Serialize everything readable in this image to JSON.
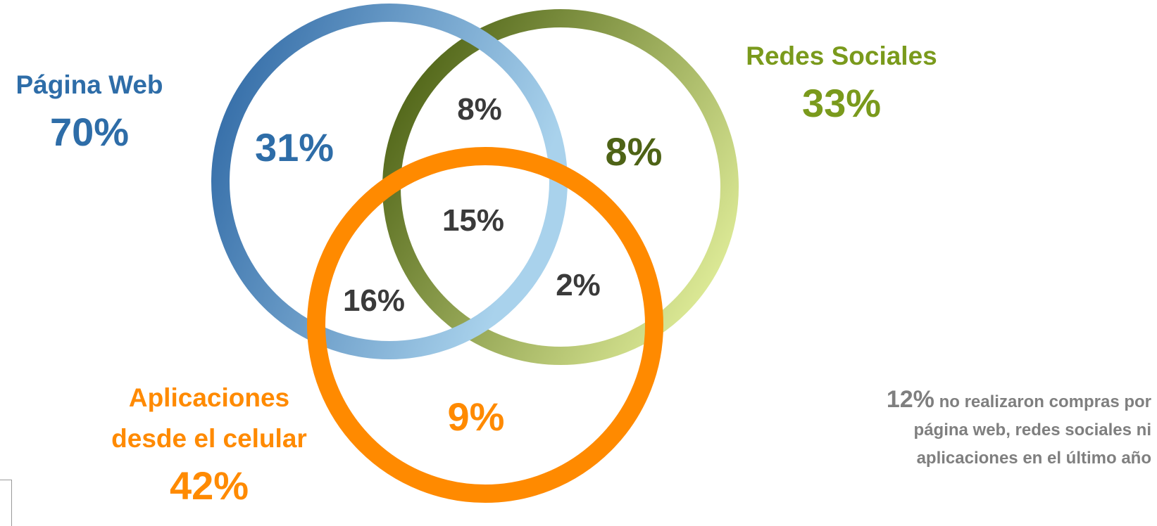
{
  "sets": [
    {
      "id": "web",
      "label_lines": [
        "Página Web"
      ],
      "total": "70%",
      "color": "#2E6DA8",
      "gradient": [
        "#2C66A3",
        "#A9D2EC"
      ]
    },
    {
      "id": "social",
      "label_lines": [
        "Redes Sociales"
      ],
      "total": "33%",
      "color": "#7A9A1C",
      "gradient": [
        "#4E6316",
        "#E2EF9B"
      ]
    },
    {
      "id": "apps",
      "label_lines": [
        "Aplicaciones",
        "desde el celular"
      ],
      "total": "42%",
      "color": "#FF8A00",
      "gradient": [
        "#FF8A00",
        "#FF8A00"
      ]
    }
  ],
  "regions": [
    {
      "id": "web-only",
      "value": "31%",
      "color": "#2E6DA8"
    },
    {
      "id": "social-only",
      "value": "8%",
      "color": "#4E6316"
    },
    {
      "id": "apps-only",
      "value": "9%",
      "color": "#FF8A00"
    },
    {
      "id": "web-social",
      "value": "8%",
      "color": "#3A3A3A"
    },
    {
      "id": "web-apps",
      "value": "16%",
      "color": "#3A3A3A"
    },
    {
      "id": "social-apps",
      "value": "2%",
      "color": "#3A3A3A"
    },
    {
      "id": "all-three",
      "value": "15%",
      "color": "#3A3A3A"
    }
  ],
  "note": {
    "percent": "12%",
    "text": "no realizaron compras por página web, redes sociales ni aplicaciones en el último año",
    "color": "#7F7F7F"
  }
}
